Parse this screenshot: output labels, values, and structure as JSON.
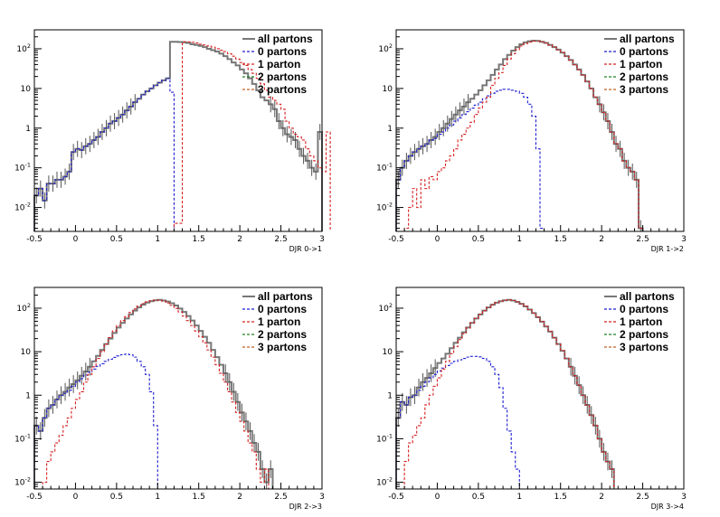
{
  "chart_data": [
    {
      "type": "histogram",
      "xlabel": "DJR 0->1",
      "ylabel": "",
      "xlim": [
        -0.5,
        3.0
      ],
      "ylim": [
        0.0025,
        300
      ],
      "yscale": "log",
      "grid": false,
      "legend": "top-right",
      "x_ticks": [
        "-0.5",
        "0",
        "0.5",
        "1",
        "1.5",
        "2",
        "2.5",
        "3"
      ],
      "y_ticks": [
        "10^-2",
        "10^-1",
        "1",
        "10",
        "10^2"
      ],
      "bin_width": 0.05,
      "legend_entries": [
        "all partons",
        "0 partons",
        "1 parton",
        "2 partons",
        "3 partons"
      ],
      "series": [
        {
          "name": "all partons",
          "color": "#777777",
          "dash": "solid",
          "bin_start": -0.5,
          "values": [
            0.02,
            0.03,
            0.015,
            0.04,
            0.04,
            0.05,
            0.05,
            0.06,
            0.08,
            0.25,
            0.3,
            0.28,
            0.35,
            0.4,
            0.5,
            0.6,
            0.8,
            1.0,
            1.3,
            1.5,
            1.8,
            2.2,
            2.8,
            3.5,
            4.5,
            5.5,
            7,
            8.5,
            10,
            12,
            14,
            16,
            18,
            150,
            150,
            148,
            145,
            140,
            130,
            125,
            118,
            110,
            100,
            92,
            85,
            75,
            65,
            55,
            45,
            38,
            30,
            24,
            18,
            13,
            9,
            6,
            5,
            4,
            3,
            1.5,
            1.0,
            0.7,
            0.6,
            0.5,
            0.3,
            0.2,
            0.15,
            0.1,
            0.08,
            0.8
          ]
        },
        {
          "name": "0 partons",
          "color": "#1f1fd0",
          "dash": "dashed",
          "bin_start": -0.5,
          "values": [
            0.02,
            0.03,
            0.015,
            0.04,
            0.04,
            0.05,
            0.05,
            0.06,
            0.08,
            0.25,
            0.3,
            0.28,
            0.35,
            0.4,
            0.5,
            0.6,
            0.8,
            1.0,
            1.3,
            1.5,
            1.8,
            2.2,
            2.8,
            3.5,
            4.5,
            5.5,
            7,
            8.5,
            10,
            12,
            14,
            16,
            18,
            8
          ]
        },
        {
          "name": "1 parton",
          "color": "#d42020",
          "dash": "dashed",
          "bin_start": 1.2,
          "values": [
            0.004,
            0.004,
            150,
            148,
            145,
            140,
            130,
            125,
            118,
            110,
            100,
            92,
            85,
            75,
            65,
            55,
            45,
            38,
            30,
            24,
            18,
            13,
            9,
            6,
            5,
            4,
            3,
            1.5,
            1.0,
            0.7,
            0.6,
            0.5,
            0.3,
            0.2,
            0.15,
            0.1,
            0.08,
            0.8
          ]
        },
        {
          "name": "2 partons",
          "color": "#208020",
          "dash": "dashed",
          "bin_start": 0,
          "values": []
        },
        {
          "name": "3 partons",
          "color": "#c06020",
          "dash": "dashed",
          "bin_start": 0,
          "values": []
        }
      ]
    },
    {
      "type": "histogram",
      "xlabel": "DJR 1->2",
      "ylabel": "",
      "xlim": [
        -0.5,
        3.0
      ],
      "ylim": [
        0.0025,
        300
      ],
      "yscale": "log",
      "grid": false,
      "legend": "top-right",
      "x_ticks": [
        "-0.5",
        "0",
        "0.5",
        "1",
        "1.5",
        "2",
        "2.5",
        "3"
      ],
      "y_ticks": [
        "10^-2",
        "10^-1",
        "1",
        "10",
        "10^2"
      ],
      "bin_width": 0.05,
      "legend_entries": [
        "all partons",
        "0 partons",
        "1 parton",
        "2 partons",
        "3 partons"
      ],
      "series": [
        {
          "name": "all partons",
          "color": "#777777",
          "dash": "solid",
          "bin_start": -0.5,
          "values": [
            0.05,
            0.1,
            0.15,
            0.2,
            0.25,
            0.3,
            0.35,
            0.4,
            0.5,
            0.6,
            0.8,
            1.0,
            1.3,
            1.7,
            2.2,
            2.8,
            3.5,
            4.5,
            5.5,
            7,
            9,
            12,
            16,
            22,
            30,
            40,
            55,
            70,
            90,
            110,
            130,
            145,
            155,
            160,
            158,
            150,
            140,
            125,
            110,
            95,
            80,
            65,
            52,
            40,
            30,
            22,
            15,
            10,
            6,
            4,
            2.5,
            1.5,
            0.8,
            0.4,
            0.3,
            0.15,
            0.1,
            0.08,
            0.05,
            0.003
          ]
        },
        {
          "name": "0 partons",
          "color": "#1f1fd0",
          "dash": "dashed",
          "bin_start": -0.5,
          "values": [
            0.05,
            0.1,
            0.15,
            0.2,
            0.25,
            0.3,
            0.35,
            0.4,
            0.5,
            0.55,
            0.7,
            0.8,
            1.0,
            1.2,
            1.5,
            1.8,
            2.2,
            2.6,
            3.2,
            3.8,
            4.5,
            5.5,
            6.5,
            7.5,
            8.5,
            9,
            9.5,
            9.5,
            9,
            8.5,
            7.5,
            6,
            4,
            2,
            0.3,
            0.003
          ]
        },
        {
          "name": "1 parton",
          "color": "#d42020",
          "dash": "dashed",
          "bin_start": -0.5,
          "values": [
            0,
            0,
            0.003,
            0.01,
            0.03,
            0.01,
            0.05,
            0.03,
            0.06,
            0.05,
            0.08,
            0.1,
            0.15,
            0.2,
            0.3,
            0.5,
            0.7,
            1.0,
            1.4,
            2.2,
            3.2,
            4.5,
            6,
            12,
            18,
            25,
            38,
            55,
            75,
            95,
            118,
            135,
            148,
            155,
            155,
            148,
            140,
            125,
            110,
            95,
            80,
            65,
            52,
            40,
            30,
            22,
            15,
            10,
            6,
            4,
            2.5,
            1.5,
            0.8,
            0.4,
            0.3,
            0.15,
            0.1,
            0.08,
            0.05,
            0.003
          ]
        },
        {
          "name": "2 partons",
          "color": "#208020",
          "dash": "dashed",
          "bin_start": 0,
          "values": []
        },
        {
          "name": "3 partons",
          "color": "#c06020",
          "dash": "dashed",
          "bin_start": 0,
          "values": []
        }
      ]
    },
    {
      "type": "histogram",
      "xlabel": "DJR 2->3",
      "ylabel": "",
      "xlim": [
        -0.5,
        3.0
      ],
      "ylim": [
        0.007,
        300
      ],
      "yscale": "log",
      "grid": false,
      "legend": "top-right",
      "x_ticks": [
        "-0.5",
        "0",
        "0.5",
        "1",
        "1.5",
        "2",
        "2.5",
        "3"
      ],
      "y_ticks": [
        "10^-2",
        "10^-1",
        "1",
        "10",
        "10^2"
      ],
      "bin_width": 0.05,
      "legend_entries": [
        "all partons",
        "0 partons",
        "1 parton",
        "2 partons",
        "3 partons"
      ],
      "series": [
        {
          "name": "all partons",
          "color": "#777777",
          "dash": "solid",
          "bin_start": -0.5,
          "values": [
            0.2,
            0.15,
            0.3,
            0.5,
            0.6,
            0.8,
            1.0,
            1.2,
            1.5,
            1.8,
            2.2,
            2.8,
            3.5,
            4.5,
            6,
            8,
            11,
            15,
            20,
            27,
            36,
            46,
            58,
            72,
            88,
            104,
            120,
            135,
            145,
            152,
            155,
            150,
            142,
            130,
            115,
            98,
            82,
            66,
            52,
            40,
            30,
            22,
            16,
            11,
            7.5,
            5,
            3.2,
            2,
            1.2,
            0.7,
            0.4,
            0.25,
            0.15,
            0.08,
            0.05,
            0.02,
            0.01,
            0.02
          ]
        },
        {
          "name": "0 partons",
          "color": "#1f1fd0",
          "dash": "dashed",
          "bin_start": -0.5,
          "values": [
            0.2,
            0.15,
            0.3,
            0.5,
            0.6,
            0.8,
            1.0,
            1.1,
            1.3,
            1.6,
            2.0,
            2.4,
            2.9,
            3.4,
            4.0,
            4.6,
            5.3,
            6,
            6.7,
            7.4,
            8,
            8.5,
            8.8,
            8.5,
            7.5,
            6,
            4.5,
            3,
            1.2,
            0.2,
            0.007
          ]
        },
        {
          "name": "1 parton",
          "color": "#d42020",
          "dash": "dashed",
          "bin_start": -0.4,
          "values": [
            0.01,
            0.03,
            0.05,
            0.08,
            0.12,
            0.2,
            0.3,
            0.5,
            0.8,
            1.2,
            2.0,
            3.0,
            4.5,
            7,
            10,
            15,
            21,
            30,
            40,
            52,
            64,
            80,
            96,
            112,
            127,
            140,
            148,
            153,
            152,
            145,
            132,
            116,
            99,
            82,
            66,
            52,
            40,
            30,
            22,
            16,
            11,
            7.5,
            5,
            3.2,
            2,
            1.2,
            0.7,
            0.4,
            0.25,
            0.15,
            0.08,
            0.05,
            0.02,
            0.01,
            0.02
          ]
        },
        {
          "name": "2 partons",
          "color": "#208020",
          "dash": "dashed",
          "bin_start": 0,
          "values": []
        },
        {
          "name": "3 partons",
          "color": "#c06020",
          "dash": "dashed",
          "bin_start": 0,
          "values": []
        }
      ]
    },
    {
      "type": "histogram",
      "xlabel": "DJR 3->4",
      "ylabel": "",
      "xlim": [
        -0.5,
        3.0
      ],
      "ylim": [
        0.007,
        300
      ],
      "yscale": "log",
      "grid": false,
      "legend": "top-right",
      "x_ticks": [
        "-0.5",
        "0",
        "0.5",
        "1",
        "1.5",
        "2",
        "2.5",
        "3"
      ],
      "y_ticks": [
        "10^-2",
        "10^-1",
        "1",
        "10",
        "10^2"
      ],
      "bin_width": 0.05,
      "legend_entries": [
        "all partons",
        "0 partons",
        "1 parton",
        "2 partons",
        "3 partons"
      ],
      "series": [
        {
          "name": "all partons",
          "color": "#777777",
          "dash": "solid",
          "bin_start": -0.5,
          "values": [
            0.3,
            0.7,
            0.6,
            0.9,
            1.0,
            1.5,
            2.0,
            2.5,
            3.2,
            4.2,
            5.5,
            7,
            9,
            12,
            16,
            21,
            28,
            36,
            46,
            58,
            72,
            88,
            104,
            120,
            134,
            145,
            152,
            155,
            150,
            140,
            126,
            110,
            93,
            77,
            62,
            49,
            38,
            29,
            21,
            15,
            10.5,
            7,
            4.5,
            2.8,
            1.7,
            1.0,
            0.6,
            0.35,
            0.2,
            0.1,
            0.05,
            0.03,
            0.02
          ]
        },
        {
          "name": "0 partons",
          "color": "#1f1fd0",
          "dash": "dashed",
          "bin_start": -0.5,
          "values": [
            0.3,
            0.7,
            0.6,
            0.9,
            1.0,
            1.3,
            1.6,
            2.0,
            2.5,
            3.0,
            3.6,
            4.2,
            4.8,
            5.4,
            6,
            6.5,
            7,
            7.5,
            7.8,
            7.8,
            7.6,
            7,
            6,
            4.5,
            3,
            1.5,
            0.5,
            0.15,
            0.05,
            0.02,
            0.007
          ]
        },
        {
          "name": "1 parton",
          "color": "#d42020",
          "dash": "dashed",
          "bin_start": -0.4,
          "values": [
            0.03,
            0.08,
            0.12,
            0.2,
            0.3,
            0.6,
            1.0,
            1.6,
            2.5,
            4,
            6,
            9,
            13,
            19,
            26,
            35,
            46,
            58,
            72,
            88,
            104,
            120,
            134,
            145,
            152,
            155,
            150,
            140,
            126,
            110,
            93,
            77,
            62,
            49,
            38,
            29,
            21,
            15,
            10.5,
            7,
            4.5,
            2.8,
            1.7,
            1.0,
            0.6,
            0.35,
            0.2,
            0.1,
            0.05,
            0.03,
            0.02
          ]
        },
        {
          "name": "2 partons",
          "color": "#208020",
          "dash": "dashed",
          "bin_start": 0,
          "values": []
        },
        {
          "name": "3 partons",
          "color": "#c06020",
          "dash": "dashed",
          "bin_start": 0,
          "values": []
        }
      ]
    }
  ]
}
